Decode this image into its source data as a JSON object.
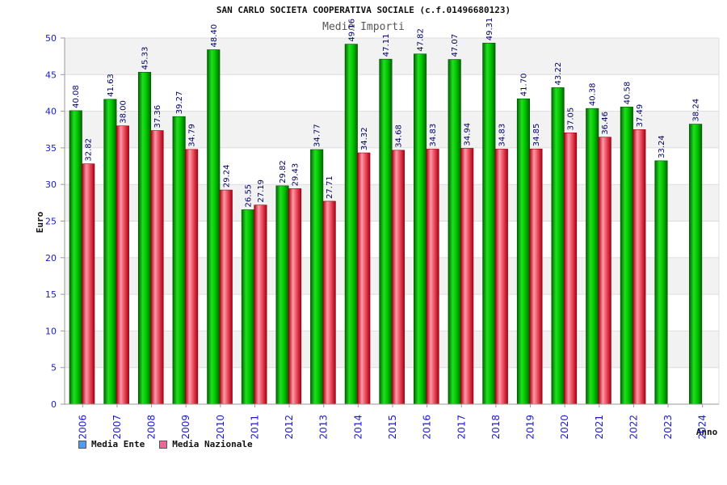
{
  "chart_data": {
    "type": "bar",
    "title": "SAN CARLO SOCIETA COOPERATIVA SOCIALE (c.f.01496680123)",
    "subtitle": "Medie Importi",
    "ylabel": "Euro",
    "xlabel": "Anno",
    "ylim": [
      0,
      50
    ],
    "yticks": [
      "0",
      "5",
      "10",
      "15",
      "20",
      "25",
      "30",
      "35",
      "40",
      "45",
      "50"
    ],
    "grid": true,
    "legend_position": "bottom-left",
    "categories": [
      "2006",
      "2007",
      "2008",
      "2009",
      "2010",
      "2011",
      "2012",
      "2013",
      "2014",
      "2015",
      "2016",
      "2017",
      "2018",
      "2019",
      "2020",
      "2021",
      "2022",
      "2023",
      "2024"
    ],
    "series": [
      {
        "name": "Media Ente",
        "color": "#00bb00",
        "legend_color": "#5599ee",
        "values": [
          40.08,
          41.63,
          45.33,
          39.27,
          48.4,
          26.55,
          29.82,
          34.77,
          49.16,
          47.11,
          47.82,
          47.07,
          49.31,
          41.7,
          43.22,
          40.38,
          40.58,
          33.24,
          38.24
        ],
        "labels": [
          "40.08",
          "41.63",
          "45.33",
          "39.27",
          "48.40",
          "26.55",
          "29.82",
          "34.77",
          "49.16",
          "47.11",
          "47.82",
          "47.07",
          "49.31",
          "41.70",
          "43.22",
          "40.38",
          "40.58",
          "33.24",
          "38.24"
        ]
      },
      {
        "name": "Media Nazionale",
        "color": "#ee3344",
        "legend_color": "#ee6699",
        "values": [
          32.82,
          38.0,
          37.36,
          34.79,
          29.24,
          27.19,
          29.43,
          27.71,
          34.32,
          34.68,
          34.83,
          34.94,
          34.83,
          34.85,
          37.05,
          36.46,
          37.49,
          null,
          null
        ],
        "labels": [
          "32.82",
          "38.00",
          "37.36",
          "34.79",
          "29.24",
          "27.19",
          "29.43",
          "27.71",
          "34.32",
          "34.68",
          "34.83",
          "34.94",
          "34.83",
          "34.85",
          "37.05",
          "36.46",
          "37.49",
          null,
          null
        ]
      }
    ]
  }
}
